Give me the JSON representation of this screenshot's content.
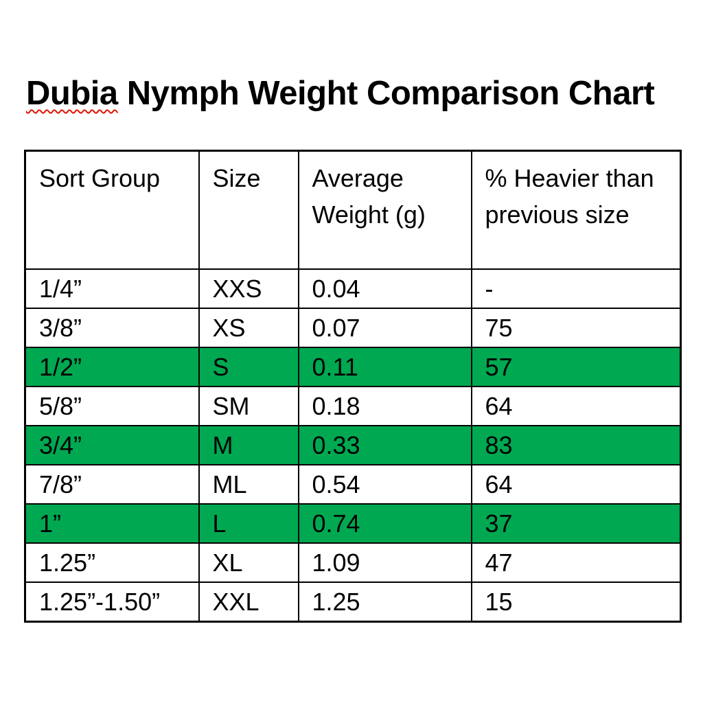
{
  "title": {
    "word_underlined": "Dubia",
    "rest": " Nymph Weight Comparison Chart",
    "squiggle_color": "#e01000"
  },
  "colors": {
    "highlight_green": "#00a851",
    "border": "#000000",
    "text": "#000000",
    "background": "#ffffff"
  },
  "table": {
    "headers": [
      "Sort Group",
      "Size",
      "Average Weight (g)",
      "% Heavier than previous size"
    ],
    "rows": [
      {
        "cells": [
          "1/4”",
          "XXS",
          "0.04",
          "-"
        ],
        "highlighted": false
      },
      {
        "cells": [
          "3/8”",
          "XS",
          "0.07",
          "75"
        ],
        "highlighted": false
      },
      {
        "cells": [
          "1/2”",
          "S",
          "0.11",
          "57"
        ],
        "highlighted": true
      },
      {
        "cells": [
          "5/8”",
          "SM",
          "0.18",
          "64"
        ],
        "highlighted": false
      },
      {
        "cells": [
          "3/4”",
          "M",
          "0.33",
          "83"
        ],
        "highlighted": true
      },
      {
        "cells": [
          "7/8”",
          "ML",
          "0.54",
          "64"
        ],
        "highlighted": false
      },
      {
        "cells": [
          "1”",
          "L",
          "0.74",
          "37"
        ],
        "highlighted": true
      },
      {
        "cells": [
          "1.25”",
          "XL",
          "1.09",
          "47"
        ],
        "highlighted": false
      },
      {
        "cells": [
          "1.25”-1.50”",
          "XXL",
          "1.25",
          "15"
        ],
        "highlighted": false
      }
    ]
  },
  "chart_data": {
    "type": "table",
    "title": "Dubia Nymph Weight Comparison Chart",
    "columns": [
      "Sort Group",
      "Size",
      "Average Weight (g)",
      "% Heavier than previous size"
    ],
    "rows": [
      [
        "1/4”",
        "XXS",
        0.04,
        null
      ],
      [
        "3/8”",
        "XS",
        0.07,
        75
      ],
      [
        "1/2”",
        "S",
        0.11,
        57
      ],
      [
        "5/8”",
        "SM",
        0.18,
        64
      ],
      [
        "3/4”",
        "M",
        0.33,
        83
      ],
      [
        "7/8”",
        "ML",
        0.54,
        64
      ],
      [
        "1”",
        "L",
        0.74,
        37
      ],
      [
        "1.25”",
        "XL",
        1.09,
        47
      ],
      [
        "1.25”-1.50”",
        "XXL",
        1.25,
        15
      ]
    ],
    "highlighted_row_indices": [
      2,
      4,
      6
    ]
  }
}
